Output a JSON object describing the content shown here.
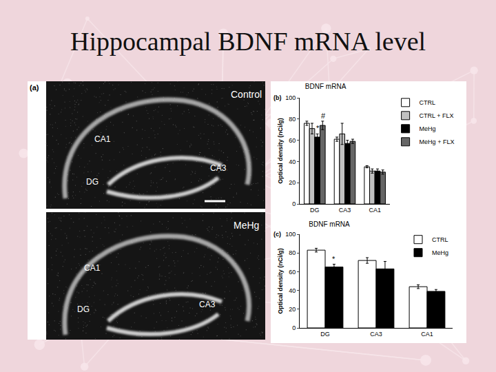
{
  "slide_title": "Hippocampal BDNF mRNA level",
  "panel_a": {
    "label": "(a)",
    "images": [
      {
        "condition": "Control",
        "regions": [
          "CA1",
          "DG",
          "CA3"
        ]
      },
      {
        "condition": "MeHg",
        "regions": [
          "CA1",
          "DG",
          "CA3"
        ]
      }
    ]
  },
  "chart_data": [
    {
      "type": "bar",
      "panel": "(b)",
      "title": "BDNF mRNA",
      "y_label": "Optical density (nCi/g)",
      "categories": [
        "DG",
        "CA3",
        "CA1"
      ],
      "series": [
        {
          "name": "CTRL",
          "color": "#ffffff",
          "values": [
            76,
            61,
            35
          ],
          "errors": [
            2,
            2,
            1
          ]
        },
        {
          "name": "CTRL + FLX",
          "color": "#c0c0c0",
          "values": [
            71,
            66,
            31
          ],
          "errors": [
            5,
            10,
            2
          ]
        },
        {
          "name": "MeHg",
          "color": "#000000",
          "values": [
            63,
            57,
            31
          ],
          "errors": [
            3,
            3,
            2
          ]
        },
        {
          "name": "MeHg + FLX",
          "color": "#666666",
          "values": [
            74,
            59,
            30
          ],
          "errors": [
            4,
            2,
            2
          ]
        }
      ],
      "ylim": [
        0,
        100
      ],
      "yticks": [
        0,
        20,
        40,
        60,
        80,
        100
      ],
      "legend": "right",
      "annotations": [
        {
          "text": "*",
          "category": "DG",
          "series": "MeHg"
        },
        {
          "text": "#",
          "category": "DG",
          "series": "MeHg + FLX"
        }
      ]
    },
    {
      "type": "bar",
      "panel": "(c)",
      "title": "BDNF mRNA",
      "y_label": "Optical density (nCi/g)",
      "categories": [
        "DG",
        "CA3",
        "CA1"
      ],
      "series": [
        {
          "name": "CTRL",
          "color": "#ffffff",
          "values": [
            83,
            72,
            44
          ],
          "errors": [
            2,
            3,
            2
          ]
        },
        {
          "name": "MeHg",
          "color": "#000000",
          "values": [
            65,
            63,
            39
          ],
          "errors": [
            3,
            8,
            2
          ]
        }
      ],
      "ylim": [
        0,
        100
      ],
      "yticks": [
        0,
        20,
        40,
        60,
        80,
        100
      ],
      "legend": "upper right",
      "annotations": [
        {
          "text": "*",
          "category": "DG",
          "series": "MeHg"
        }
      ]
    }
  ]
}
